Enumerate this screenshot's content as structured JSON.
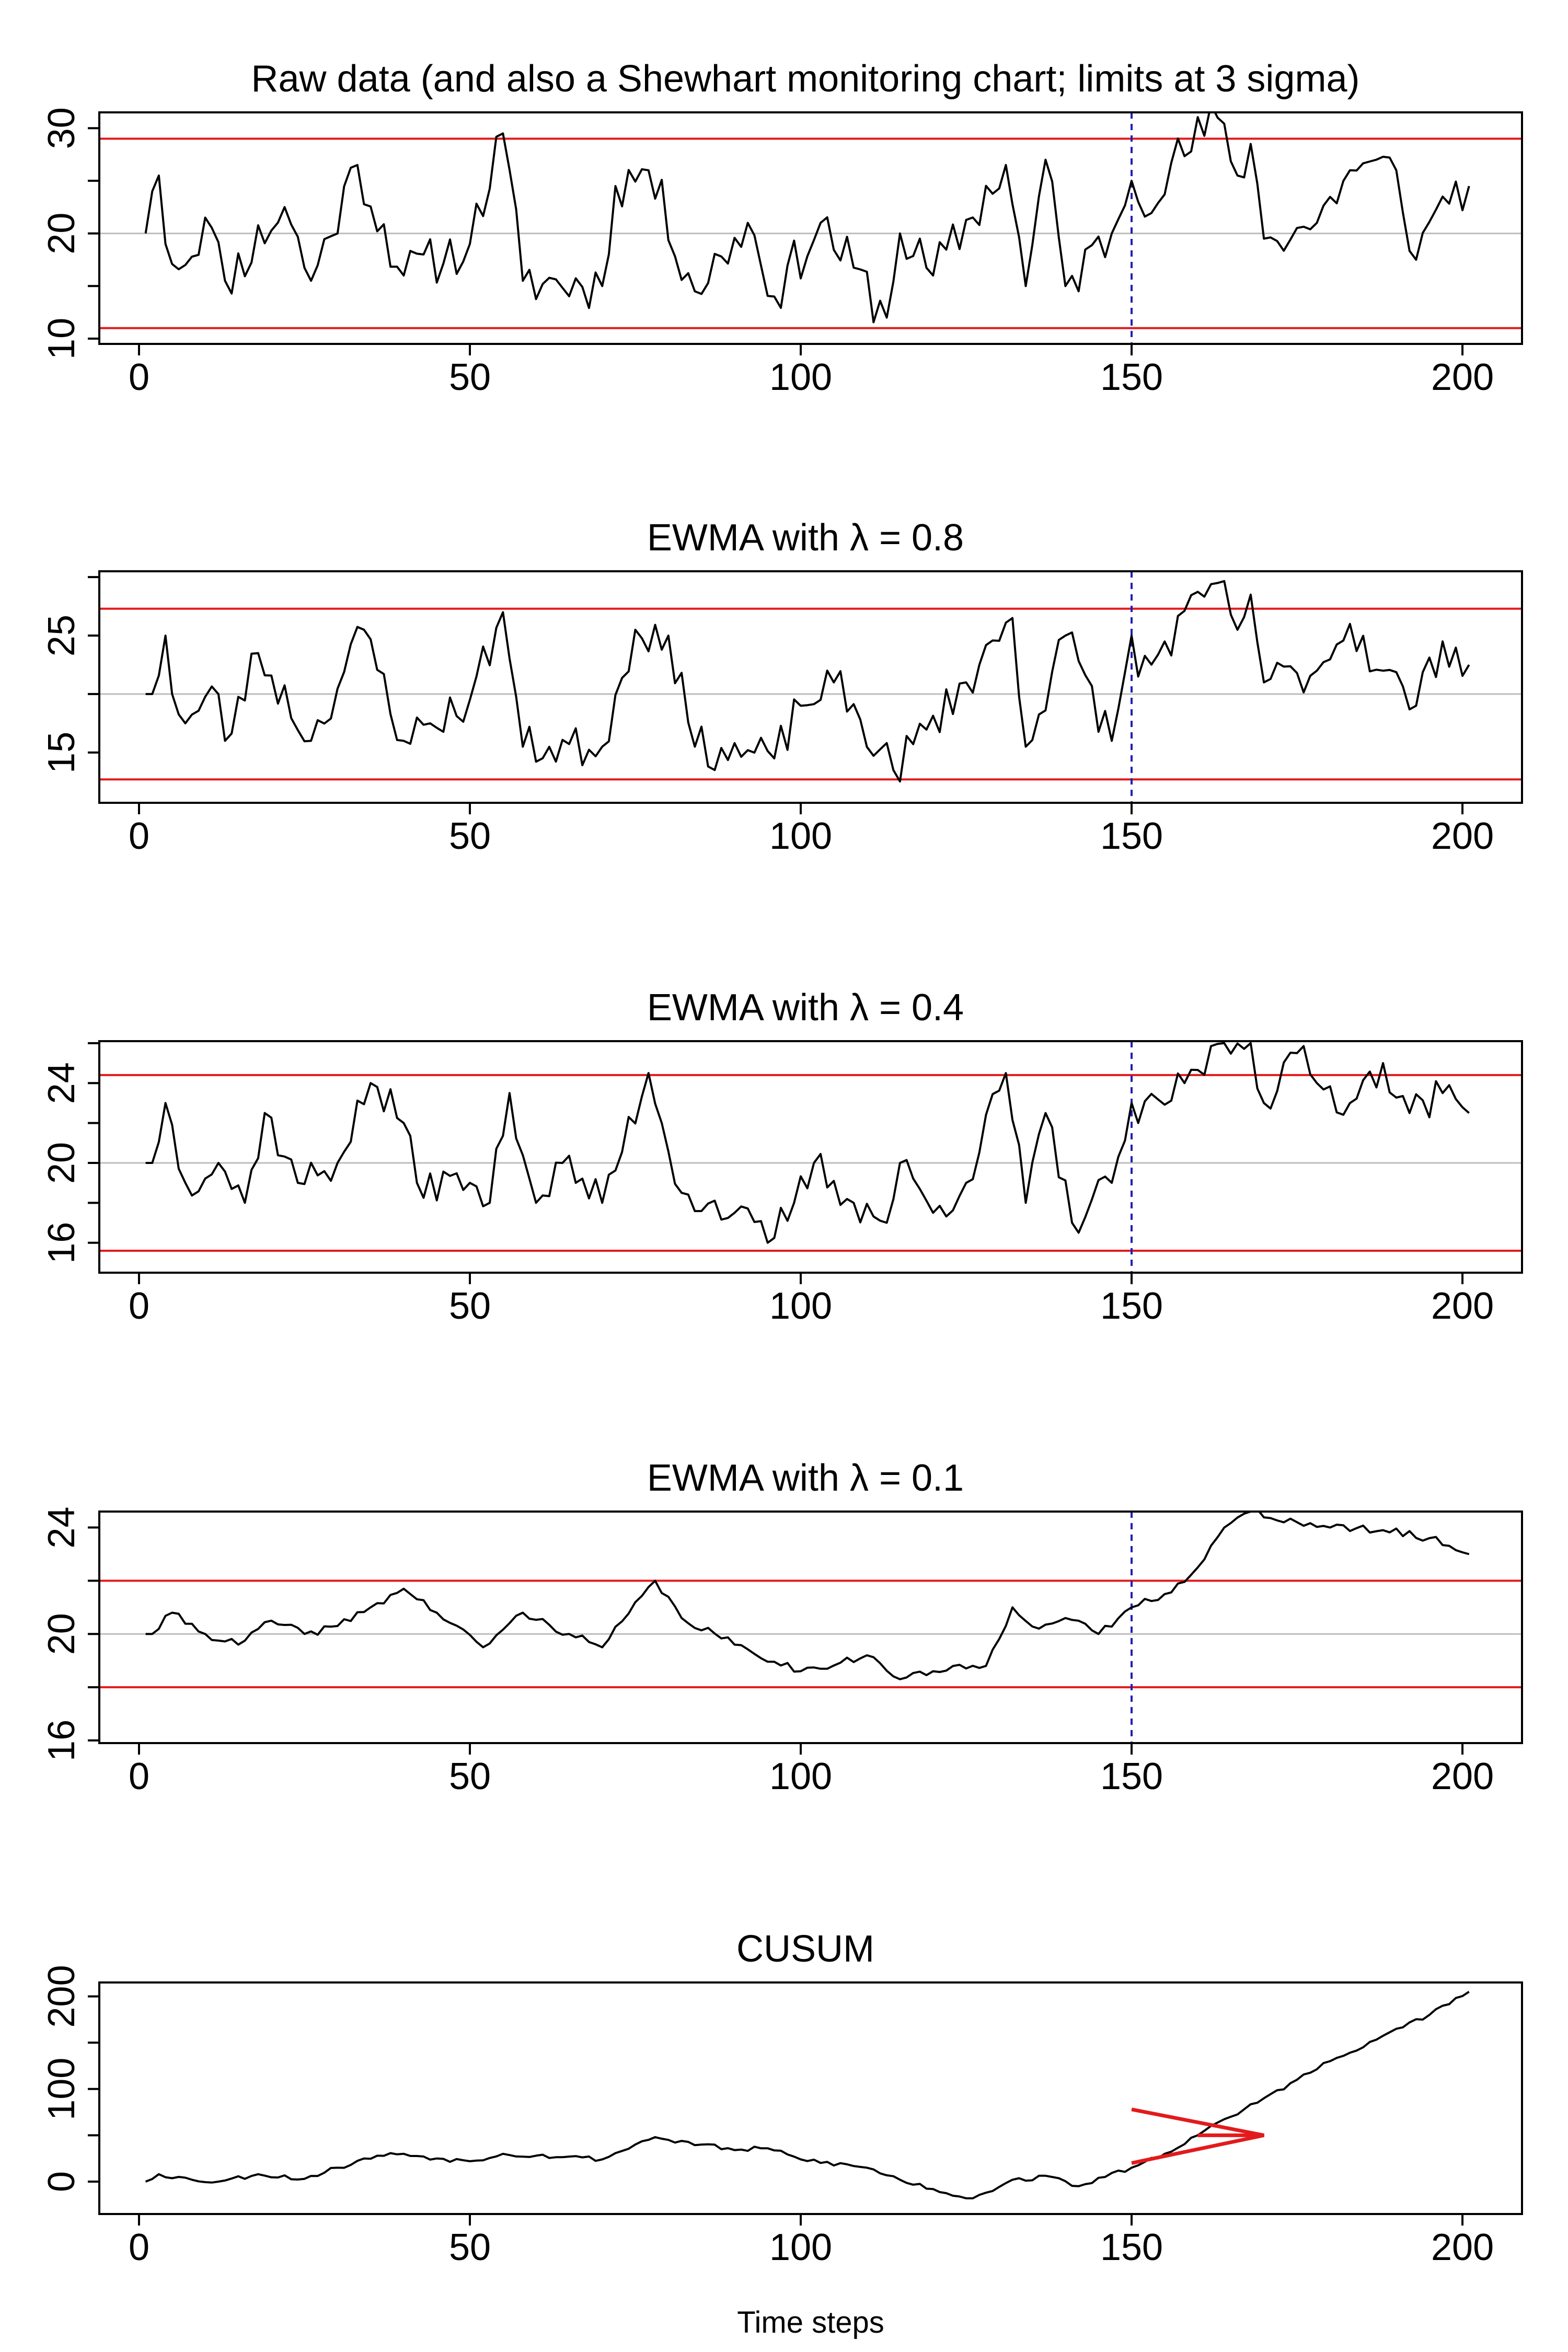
{
  "xlabel": "Time steps",
  "colors": {
    "series": "#000000",
    "limits": "#e31a1c",
    "centerline": "#bdbdbd",
    "changepoint": "#1f1fb4"
  },
  "chart_data": [
    {
      "type": "line",
      "title": "Raw data (and also a Shewhart monitoring chart; limits at 3 sigma)",
      "xlim": [
        -6,
        209
      ],
      "xticks": [
        0,
        50,
        100,
        150,
        200
      ],
      "ylim": [
        9.5,
        31.5
      ],
      "yticks": [
        10,
        20,
        30
      ],
      "yminor": [
        15,
        25
      ],
      "center": 20,
      "limits": [
        11,
        29
      ],
      "changepoint": 150,
      "seed": 11,
      "key_points": [
        [
          1,
          20
        ],
        [
          2,
          24
        ],
        [
          3,
          25.5
        ],
        [
          4,
          19
        ],
        [
          7,
          17
        ],
        [
          10,
          21.5
        ],
        [
          13,
          15.5
        ],
        [
          22,
          22.5
        ],
        [
          26,
          15.5
        ],
        [
          33,
          26.5
        ],
        [
          40,
          16
        ],
        [
          50,
          19
        ],
        [
          55,
          29.5
        ],
        [
          58,
          15.5
        ],
        [
          70,
          15
        ],
        [
          72,
          24.5
        ],
        [
          77,
          26
        ],
        [
          84,
          14.5
        ],
        [
          92,
          21
        ],
        [
          96,
          14
        ],
        [
          103,
          21
        ],
        [
          113,
          12
        ],
        [
          115,
          20
        ],
        [
          120,
          16
        ],
        [
          131,
          26.5
        ],
        [
          134,
          15
        ],
        [
          137,
          27
        ],
        [
          140,
          15
        ],
        [
          147,
          20
        ],
        [
          150,
          25
        ],
        [
          151,
          23
        ],
        [
          163,
          31
        ],
        [
          166,
          25.5
        ],
        [
          168,
          28.5
        ],
        [
          170,
          19.5
        ],
        [
          178,
          21
        ],
        [
          183,
          26
        ],
        [
          190,
          26
        ],
        [
          193,
          17.5
        ],
        [
          197,
          23.5
        ],
        [
          201,
          24.5
        ]
      ],
      "noise": 2.4
    },
    {
      "type": "line",
      "title": "EWMA with λ = 0.8",
      "xlim": [
        -6,
        209
      ],
      "xticks": [
        0,
        50,
        100,
        150,
        200
      ],
      "ylim": [
        10.7,
        30.5
      ],
      "yticks": [
        15,
        25
      ],
      "yminor": [
        10,
        20,
        30
      ],
      "center": 20,
      "limits": [
        12.7,
        27.3
      ],
      "changepoint": 150,
      "seed": 23,
      "key_points": [
        [
          1,
          20
        ],
        [
          2,
          20
        ],
        [
          4,
          25
        ],
        [
          5,
          20
        ],
        [
          7,
          17.5
        ],
        [
          12,
          20
        ],
        [
          13,
          16
        ],
        [
          18,
          23.5
        ],
        [
          26,
          16
        ],
        [
          34,
          25.5
        ],
        [
          40,
          16
        ],
        [
          50,
          19.5
        ],
        [
          55,
          27
        ],
        [
          58,
          15.5
        ],
        [
          70,
          15.5
        ],
        [
          75,
          25.5
        ],
        [
          80,
          25
        ],
        [
          84,
          15.5
        ],
        [
          96,
          14.5
        ],
        [
          100,
          19
        ],
        [
          105,
          21
        ],
        [
          114,
          13.5
        ],
        [
          125,
          21
        ],
        [
          132,
          26.5
        ],
        [
          134,
          15.5
        ],
        [
          140,
          25
        ],
        [
          147,
          16
        ],
        [
          150,
          25
        ],
        [
          151,
          21.5
        ],
        [
          163,
          29.5
        ],
        [
          166,
          25.5
        ],
        [
          168,
          28.5
        ],
        [
          170,
          21
        ],
        [
          178,
          22
        ],
        [
          183,
          26
        ],
        [
          188,
          22
        ],
        [
          193,
          19
        ],
        [
          197,
          24.5
        ],
        [
          201,
          22.5
        ]
      ],
      "noise": 1.8
    },
    {
      "type": "line",
      "title": "EWMA with λ = 0.4",
      "xlim": [
        -6,
        209
      ],
      "xticks": [
        0,
        50,
        100,
        150,
        200
      ],
      "ylim": [
        14.5,
        26.1
      ],
      "yticks": [
        16,
        20,
        24
      ],
      "yminor": [
        18,
        22,
        26
      ],
      "center": 20,
      "limits": [
        15.6,
        24.4
      ],
      "changepoint": 150,
      "seed": 37,
      "key_points": [
        [
          1,
          20
        ],
        [
          2,
          20
        ],
        [
          4,
          23
        ],
        [
          7,
          19
        ],
        [
          12,
          20
        ],
        [
          16,
          18
        ],
        [
          19,
          22.5
        ],
        [
          24,
          19
        ],
        [
          30,
          20
        ],
        [
          35,
          24
        ],
        [
          40,
          22
        ],
        [
          42,
          19
        ],
        [
          50,
          19
        ],
        [
          53,
          18
        ],
        [
          56,
          23.5
        ],
        [
          60,
          18
        ],
        [
          64,
          20
        ],
        [
          70,
          18
        ],
        [
          77,
          24.5
        ],
        [
          79,
          22
        ],
        [
          82,
          18.5
        ],
        [
          90,
          17.5
        ],
        [
          95,
          16
        ],
        [
          99,
          18
        ],
        [
          102,
          20
        ],
        [
          108,
          18
        ],
        [
          113,
          17
        ],
        [
          115,
          20
        ],
        [
          120,
          17.5
        ],
        [
          125,
          19
        ],
        [
          131,
          24.5
        ],
        [
          134,
          18
        ],
        [
          137,
          22.5
        ],
        [
          141,
          17
        ],
        [
          147,
          19
        ],
        [
          150,
          23
        ],
        [
          151,
          22
        ],
        [
          158,
          24
        ],
        [
          164,
          26
        ],
        [
          168,
          26
        ],
        [
          170,
          23
        ],
        [
          175,
          25.5
        ],
        [
          178,
          24
        ],
        [
          183,
          23
        ],
        [
          188,
          25
        ],
        [
          192,
          22.5
        ],
        [
          197,
          23.5
        ],
        [
          201,
          22.5
        ]
      ],
      "noise": 0.9
    },
    {
      "type": "line",
      "title": "EWMA with λ = 0.1",
      "xlim": [
        -6,
        209
      ],
      "xticks": [
        0,
        50,
        100,
        150,
        200
      ],
      "ylim": [
        15.9,
        24.6
      ],
      "yticks": [
        16,
        20,
        24
      ],
      "yminor": [
        18,
        22
      ],
      "center": 20,
      "limits": [
        18,
        22
      ],
      "changepoint": 150,
      "seed": 41,
      "key_points": [
        [
          1,
          20
        ],
        [
          2,
          20
        ],
        [
          5,
          20.8
        ],
        [
          10,
          20
        ],
        [
          15,
          19.6
        ],
        [
          20,
          20.5
        ],
        [
          25,
          20
        ],
        [
          30,
          20.3
        ],
        [
          35,
          21
        ],
        [
          40,
          21.7
        ],
        [
          45,
          20.8
        ],
        [
          52,
          19.5
        ],
        [
          58,
          20.8
        ],
        [
          65,
          20
        ],
        [
          70,
          19.5
        ],
        [
          78,
          22
        ],
        [
          82,
          20.6
        ],
        [
          90,
          19.6
        ],
        [
          100,
          18.6
        ],
        [
          110,
          19.2
        ],
        [
          115,
          18.3
        ],
        [
          120,
          18.6
        ],
        [
          128,
          18.8
        ],
        [
          132,
          21
        ],
        [
          136,
          20.2
        ],
        [
          140,
          20.6
        ],
        [
          145,
          20
        ],
        [
          150,
          21
        ],
        [
          155,
          21.5
        ],
        [
          160,
          22.5
        ],
        [
          164,
          24
        ],
        [
          168,
          24.6
        ],
        [
          175,
          24.2
        ],
        [
          180,
          24
        ],
        [
          188,
          23.9
        ],
        [
          195,
          23.6
        ],
        [
          201,
          23
        ]
      ],
      "noise": 0.15
    },
    {
      "type": "line",
      "title": "CUSUM",
      "xlim": [
        -6,
        209
      ],
      "xticks": [
        0,
        50,
        100,
        150,
        200
      ],
      "ylim": [
        -35,
        215
      ],
      "yticks": [
        0,
        100,
        200
      ],
      "yminor": [
        50,
        150
      ],
      "changepoint": null,
      "seed": 53,
      "key_points": [
        [
          1,
          0
        ],
        [
          3,
          8
        ],
        [
          8,
          2
        ],
        [
          12,
          0
        ],
        [
          18,
          8
        ],
        [
          25,
          3
        ],
        [
          30,
          15
        ],
        [
          36,
          28
        ],
        [
          40,
          30
        ],
        [
          45,
          25
        ],
        [
          50,
          22
        ],
        [
          55,
          30
        ],
        [
          60,
          28
        ],
        [
          65,
          27
        ],
        [
          70,
          24
        ],
        [
          75,
          40
        ],
        [
          78,
          48
        ],
        [
          80,
          45
        ],
        [
          85,
          40
        ],
        [
          90,
          34
        ],
        [
          95,
          36
        ],
        [
          100,
          24
        ],
        [
          110,
          15
        ],
        [
          115,
          2
        ],
        [
          120,
          -8
        ],
        [
          125,
          -18
        ],
        [
          128,
          -12
        ],
        [
          132,
          2
        ],
        [
          138,
          5
        ],
        [
          142,
          -5
        ],
        [
          146,
          5
        ],
        [
          150,
          15
        ],
        [
          155,
          30
        ],
        [
          160,
          50
        ],
        [
          165,
          70
        ],
        [
          170,
          90
        ],
        [
          175,
          110
        ],
        [
          180,
          130
        ],
        [
          185,
          145
        ],
        [
          190,
          165
        ],
        [
          195,
          180
        ],
        [
          201,
          205
        ]
      ],
      "noise": 2.5,
      "vmask": {
        "arms": [
          [
            150,
            78
          ],
          [
            170,
            50
          ],
          [
            150,
            20
          ]
        ],
        "stem": [
          [
            170,
            50
          ],
          [
            160,
            50
          ]
        ]
      }
    }
  ]
}
